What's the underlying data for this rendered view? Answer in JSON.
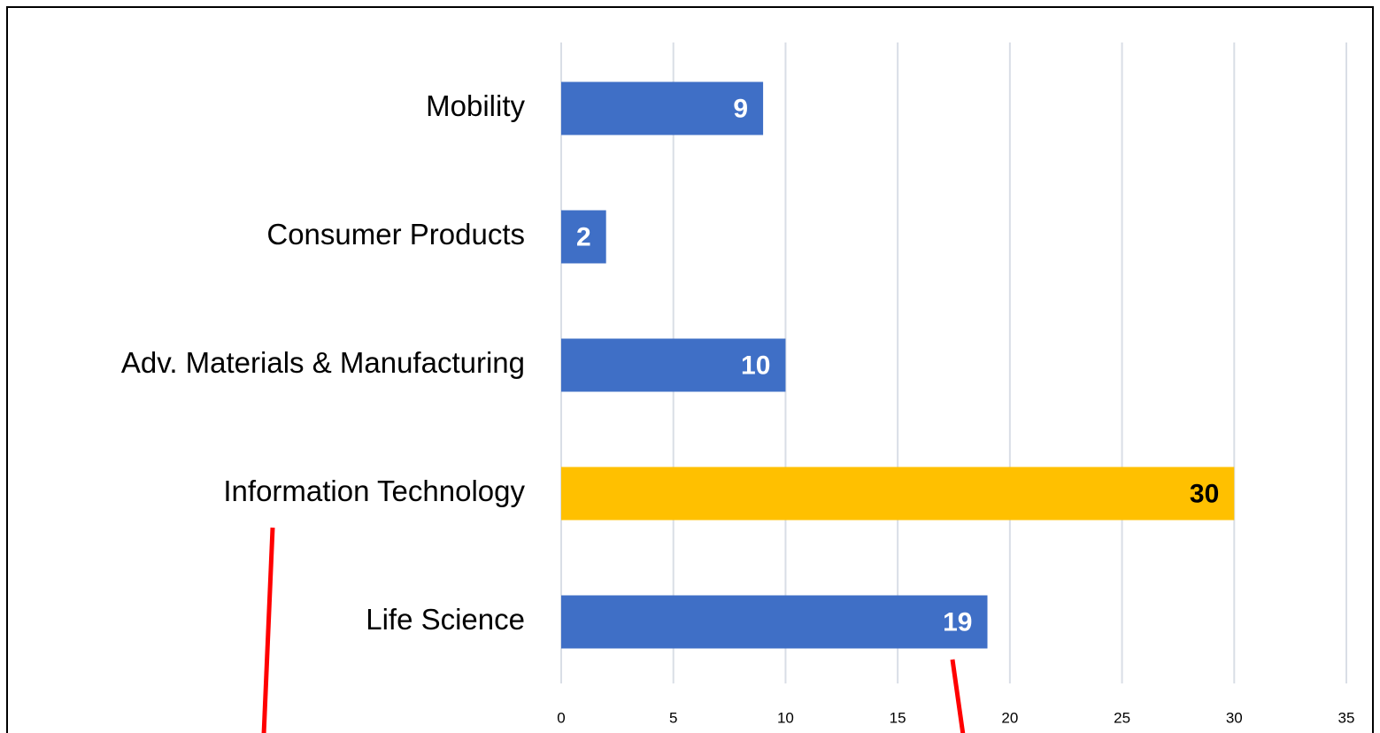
{
  "chart_data": {
    "type": "barh",
    "categories": [
      "Mobility",
      "Consumer Products",
      "Adv. Materials & Manufacturing",
      "Information Technology",
      "Life Science"
    ],
    "values": [
      9,
      2,
      10,
      30,
      19
    ],
    "colors": [
      "#3f6fc6",
      "#3f6fc6",
      "#3f6fc6",
      "#ffc000",
      "#3f6fc6"
    ],
    "value_label_colors": [
      "#ffffff",
      "#ffffff",
      "#ffffff",
      "#000000",
      "#ffffff"
    ],
    "xlim": [
      0,
      35
    ],
    "xticks": [
      0,
      5,
      10,
      15,
      20,
      25,
      30,
      35
    ],
    "grid": true
  }
}
